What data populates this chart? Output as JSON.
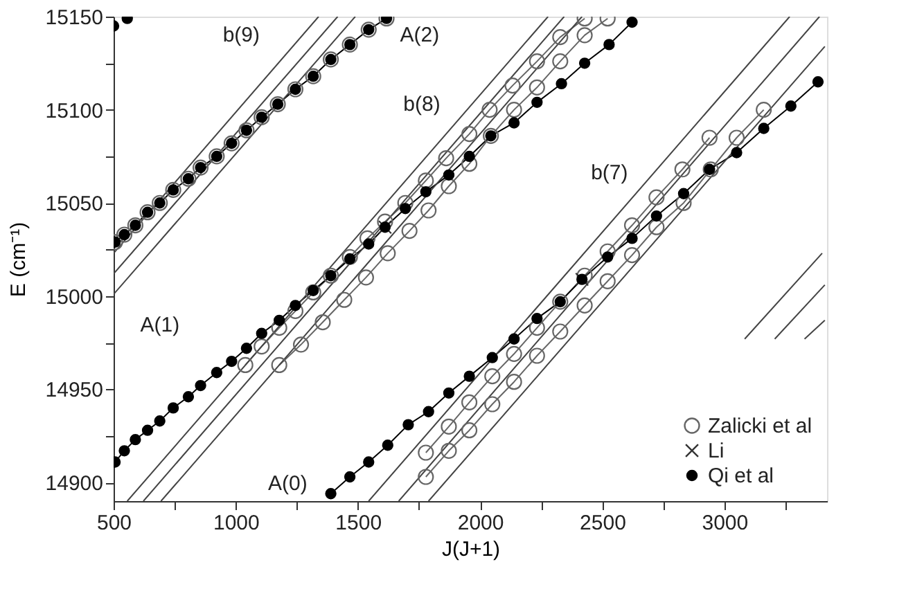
{
  "chart_data": {
    "type": "scatter",
    "xlabel": "J(J+1)",
    "ylabel": "E (cm⁻¹)",
    "xlim": [
      500,
      3420
    ],
    "ylim": [
      14890,
      15150
    ],
    "xticks": [
      500,
      {
        "value": 750,
        "label": null
      },
      1000,
      {
        "value": 1250,
        "label": null
      },
      1500,
      {
        "value": 1750,
        "label": null
      },
      2000,
      {
        "value": 2250,
        "label": null
      },
      2500,
      {
        "value": 2750,
        "label": null
      },
      3000,
      {
        "value": 3250,
        "label": null
      }
    ],
    "yticks": [
      14900,
      {
        "value": 14925,
        "label": null
      },
      14950,
      {
        "value": 14975,
        "label": null
      },
      15000,
      {
        "value": 15025,
        "label": null
      },
      15050,
      {
        "value": 15075,
        "label": null
      },
      15100,
      {
        "value": 15125,
        "label": null
      },
      15150
    ],
    "grid": false,
    "legend": "bottom right",
    "line_style": "solid",
    "annotations": [
      "b(9)",
      "A(2)",
      "b(8)",
      "b(7)",
      "A(1)",
      "A(0)"
    ],
    "series": [
      {
        "name": "Zalicki et al",
        "marker": "circle-open",
        "color": "#666666",
        "x": [
          506,
          544,
          589,
          639,
          689,
          744,
          806,
          856,
          922,
          983,
          1044,
          1106,
          1172,
          1244,
          1317,
          1389,
          1467,
          1544,
          1617,
          1039,
          1106,
          1178,
          1244,
          1317,
          1389,
          1467,
          1539,
          1611,
          1694,
          1778,
          1861,
          1956,
          2039,
          2133,
          2233,
          2328,
          2428,
          1178,
          1267,
          1356,
          1444,
          1533,
          1622,
          1711,
          1789,
          1872,
          1956,
          2044,
          2139,
          2233,
          2328,
          2428,
          2522,
          1778,
          1872,
          1956,
          2050,
          2139,
          2233,
          2328,
          2428,
          2522,
          2622,
          2722,
          2828,
          2939,
          1778,
          1872,
          1956,
          2050,
          2139,
          2233,
          2328,
          2428,
          2522,
          2622,
          2722,
          2833,
          2944,
          3050,
          3161
        ],
        "values": [
          15029,
          15033,
          15038,
          15045,
          15050,
          15057,
          15063,
          15069,
          15075,
          15082,
          15089,
          15096,
          15103,
          15111,
          15118,
          15127,
          15135,
          15143,
          15149,
          14963,
          14973,
          14983,
          14992,
          15002,
          15011,
          15021,
          15031,
          15040,
          15050,
          15062,
          15074,
          15087,
          15100,
          15113,
          15126,
          15139,
          15149,
          14963,
          14974,
          14986,
          14998,
          15010,
          15023,
          15035,
          15046,
          15059,
          15071,
          15086,
          15100,
          15112,
          15126,
          15140,
          15149,
          14916,
          14930,
          14943,
          14957,
          14969,
          14983,
          14997,
          15011,
          15024,
          15038,
          15053,
          15068,
          15085,
          14903,
          14917,
          14928,
          14942,
          14954,
          14968,
          14981,
          14995,
          15008,
          15022,
          15037,
          15050,
          15068,
          15085,
          15100
        ]
      },
      {
        "name": "Li",
        "marker": "cross",
        "color": "#333333",
        "x": [
          1611,
          2417
        ],
        "values": [
          15037,
          15009
        ]
      },
      {
        "name": "Qi et al",
        "marker": "circle",
        "color": "#000000",
        "x": [
          500,
          556,
          506,
          544,
          589,
          639,
          689,
          744,
          806,
          856,
          922,
          983,
          1044,
          1106,
          1172,
          1244,
          1317,
          1389,
          1467,
          1544,
          1617,
          506,
          544,
          589,
          639,
          689,
          744,
          806,
          856,
          922,
          983,
          1044,
          1106,
          1178,
          1244,
          1317,
          1389,
          1467,
          1544,
          1611,
          1694,
          1778,
          1872,
          1956,
          2044,
          2139,
          2233,
          2333,
          2428,
          2528,
          2622,
          1389,
          1467,
          1544,
          1622,
          1706,
          1789,
          1872,
          1956,
          2050,
          2139,
          2233,
          2328,
          2417,
          2522,
          2622,
          2722,
          2833,
          2939,
          3050,
          3161,
          3272,
          3383
        ],
        "values": [
          15145,
          15149,
          15029,
          15033,
          15038,
          15045,
          15050,
          15057,
          15063,
          15069,
          15075,
          15082,
          15089,
          15096,
          15103,
          15111,
          15118,
          15127,
          15135,
          15143,
          15149,
          14911,
          14917,
          14923,
          14928,
          14933,
          14940,
          14946,
          14952,
          14959,
          14965,
          14972,
          14980,
          14987,
          14995,
          15003,
          15011,
          15020,
          15028,
          15037,
          15047,
          15056,
          15065,
          15075,
          15086,
          15093,
          15104,
          15114,
          15125,
          15135,
          15147,
          14894,
          14903,
          14911,
          14920,
          14931,
          14938,
          14948,
          14957,
          14967,
          14977,
          14988,
          14997,
          15009,
          15021,
          15031,
          15043,
          15055,
          15068,
          15077,
          15090,
          15102,
          15115
        ]
      },
      {
        "type": "line",
        "marker": "none",
        "color": "#000000",
        "x": [
          506,
          544,
          589,
          639,
          689,
          744,
          806,
          856,
          922,
          983,
          1044,
          1106,
          1172,
          1244,
          1317,
          1389,
          1467,
          1544,
          1617
        ],
        "values": [
          15029,
          15033,
          15038,
          15045,
          15050,
          15057,
          15063,
          15069,
          15075,
          15082,
          15089,
          15096,
          15103,
          15111,
          15118,
          15127,
          15135,
          15143,
          15149
        ]
      },
      {
        "type": "line",
        "marker": "none",
        "color": "#666666",
        "x": [
          1039,
          1106,
          1178,
          1244,
          1317,
          1389,
          1467,
          1539,
          1611,
          1694,
          1778,
          1861,
          1956,
          2039,
          2133,
          2233,
          2328,
          2428
        ],
        "values": [
          14963,
          14973,
          14983,
          14992,
          15002,
          15011,
          15021,
          15031,
          15040,
          15050,
          15062,
          15074,
          15087,
          15100,
          15113,
          15126,
          15139,
          15149
        ]
      },
      {
        "type": "line",
        "marker": "none",
        "color": "#666666",
        "x": [
          1178,
          1267,
          1356,
          1444,
          1533,
          1622,
          1711,
          1789,
          1872,
          1956,
          2044,
          2139,
          2233,
          2328,
          2428,
          2522
        ],
        "values": [
          14963,
          14974,
          14986,
          14998,
          15010,
          15023,
          15035,
          15046,
          15059,
          15071,
          15086,
          15100,
          15112,
          15126,
          15140,
          15149
        ]
      },
      {
        "type": "line",
        "marker": "none",
        "color": "#666666",
        "x": [
          1778,
          1872,
          1956,
          2050,
          2139,
          2233,
          2328,
          2428,
          2522,
          2622,
          2722,
          2828,
          2939
        ],
        "values": [
          14916,
          14930,
          14943,
          14957,
          14969,
          14983,
          14997,
          15011,
          15024,
          15038,
          15053,
          15068,
          15085
        ]
      },
      {
        "type": "line",
        "marker": "none",
        "color": "#666666",
        "x": [
          1778,
          1872,
          1956,
          2050,
          2139,
          2233,
          2328,
          2428,
          2522,
          2622,
          2722,
          2833,
          2944,
          3050,
          3161
        ],
        "values": [
          14903,
          14917,
          14928,
          14942,
          14954,
          14968,
          14981,
          14995,
          15008,
          15022,
          15037,
          15050,
          15068,
          15085,
          15100
        ]
      },
      {
        "type": "line",
        "marker": "none",
        "color": "#000000",
        "x": [
          506,
          544,
          589,
          639,
          689,
          744,
          806,
          856,
          922,
          983,
          1044,
          1106,
          1178,
          1244,
          1317,
          1389,
          1467,
          1544,
          1611,
          1694,
          1778,
          1872,
          1956,
          2044,
          2139,
          2233,
          2333,
          2428,
          2528,
          2622
        ],
        "values": [
          14911,
          14917,
          14923,
          14928,
          14933,
          14940,
          14946,
          14952,
          14959,
          14965,
          14972,
          14980,
          14987,
          14995,
          15003,
          15011,
          15020,
          15028,
          15037,
          15047,
          15056,
          15065,
          15075,
          15086,
          15093,
          15104,
          15114,
          15125,
          15135,
          15147
        ]
      },
      {
        "type": "line",
        "marker": "none",
        "color": "#000000",
        "x": [
          1389,
          1467,
          1544,
          1622,
          1706,
          1789,
          1872,
          1956,
          2050,
          2139,
          2233,
          2328,
          2417,
          2522,
          2622,
          2722,
          2833,
          2939,
          3050,
          3161,
          3272,
          3383
        ],
        "values": [
          14894,
          14903,
          14911,
          14920,
          14931,
          14938,
          14948,
          14957,
          14967,
          14977,
          14988,
          14997,
          15009,
          15021,
          15031,
          15043,
          15055,
          15068,
          15077,
          15090,
          15102,
          15115
        ]
      },
      {
        "type": "line",
        "marker": "none",
        "color": "#444444",
        "x": [
          500,
          1339
        ],
        "values": [
          15023,
          15150
        ]
      },
      {
        "type": "line",
        "marker": "none",
        "color": "#444444",
        "x": [
          500,
          1417
        ],
        "values": [
          15012,
          15150
        ]
      },
      {
        "type": "line",
        "marker": "none",
        "color": "#444444",
        "x": [
          500,
          1489
        ],
        "values": [
          15001,
          15150
        ]
      },
      {
        "type": "line",
        "marker": "none",
        "color": "#444444",
        "x": [
          556,
          2278
        ],
        "values": [
          14890,
          15150
        ]
      },
      {
        "type": "line",
        "marker": "none",
        "color": "#444444",
        "x": [
          622,
          2344
        ],
        "values": [
          14890,
          15150
        ]
      },
      {
        "type": "line",
        "marker": "none",
        "color": "#444444",
        "x": [
          694,
          2417
        ],
        "values": [
          14890,
          15150
        ]
      },
      {
        "type": "line",
        "marker": "none",
        "color": "#444444",
        "x": [
          1544,
          3267
        ],
        "values": [
          14890,
          15150
        ]
      },
      {
        "type": "line",
        "marker": "none",
        "color": "#444444",
        "x": [
          1667,
          3389
        ],
        "values": [
          14890,
          15150
        ]
      },
      {
        "type": "line",
        "marker": "none",
        "color": "#444444",
        "x": [
          1789,
          3411
        ],
        "values": [
          14890,
          15134
        ]
      },
      {
        "type": "line",
        "marker": "none",
        "color": "#444444",
        "x": [
          3083,
          3400
        ],
        "values": [
          14977,
          15023
        ]
      },
      {
        "type": "line",
        "marker": "none",
        "color": "#444444",
        "x": [
          3206,
          3411
        ],
        "values": [
          14977,
          15006
        ]
      },
      {
        "type": "line",
        "marker": "none",
        "color": "#444444",
        "x": [
          3328,
          3411
        ],
        "values": [
          14977,
          14987
        ]
      }
    ]
  }
}
